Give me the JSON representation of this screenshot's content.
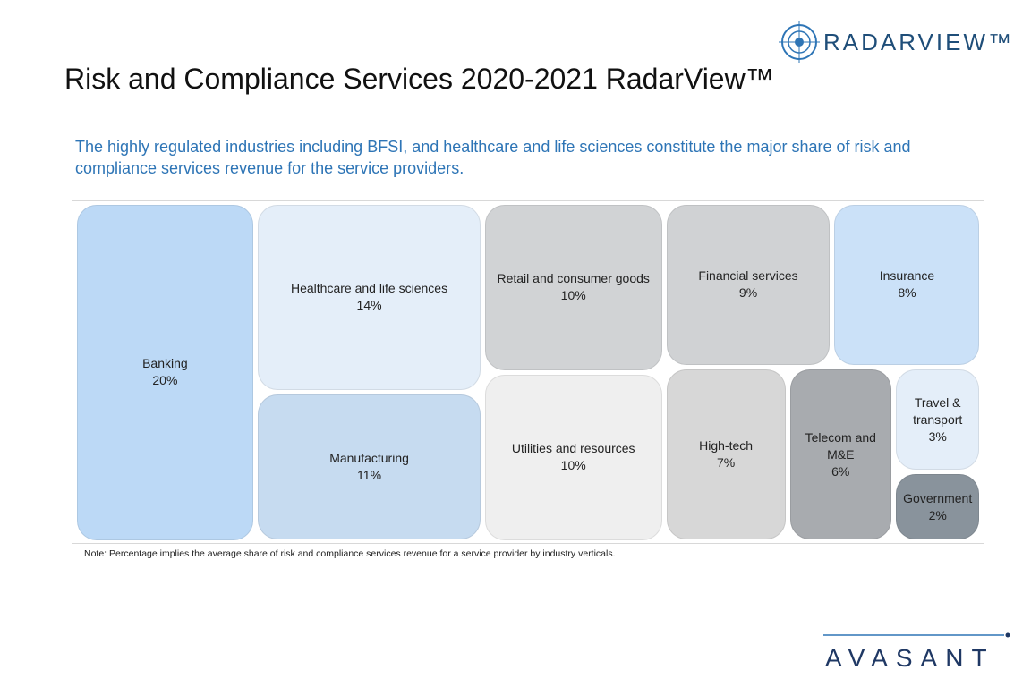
{
  "chart_data": {
    "type": "treemap",
    "title": "Risk and Compliance Services 2020-2021 RadarView™",
    "subtitle": "The highly regulated industries including BFSI, and healthcare and life sciences constitute the major share of risk and compliance services revenue for the service providers.",
    "note": "Note: Percentage implies the average share of risk and compliance services revenue for a service provider by industry verticals.",
    "categories": [
      "Banking",
      "Healthcare and life sciences",
      "Manufacturing",
      "Retail and consumer goods",
      "Utilities and resources",
      "Financial services",
      "Insurance",
      "High-tech",
      "Telecom and M&E",
      "Travel & transport",
      "Government"
    ],
    "values": [
      20,
      14,
      11,
      10,
      10,
      9,
      8,
      7,
      6,
      3,
      2
    ],
    "value_labels": [
      "20%",
      "14%",
      "11%",
      "10%",
      "10%",
      "9%",
      "8%",
      "7%",
      "6%",
      "3%",
      "2%"
    ],
    "colors": [
      "#bcd9f6",
      "#e4eef9",
      "#c6dbf0",
      "#d1d3d5",
      "#efefef",
      "#d0d2d4",
      "#cbe1f8",
      "#d7d7d7",
      "#a8abaf",
      "#e4eef9",
      "#89939c"
    ]
  },
  "logos": {
    "radarview": "RADARVIEW™",
    "avasant": "AVASANT"
  }
}
